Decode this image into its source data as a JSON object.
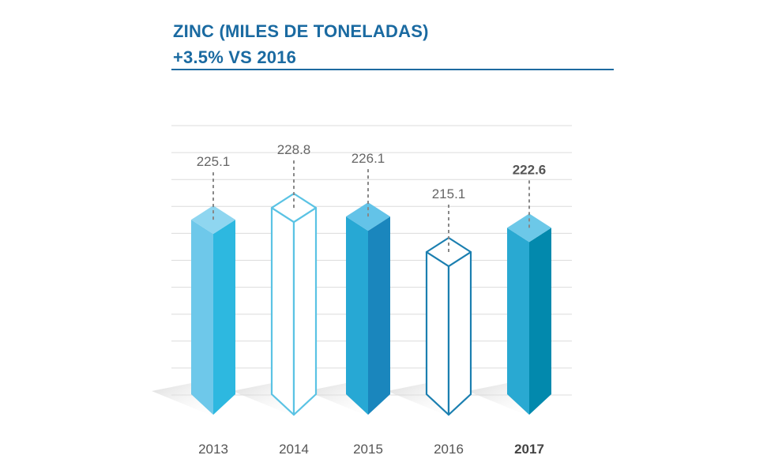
{
  "header": {
    "title_line1": "ZINC (MILES DE TONELADAS)",
    "title_line2": "+3.5% VS 2016"
  },
  "colors": {
    "title": "#1a6aa1",
    "grid": "#dcdcdc",
    "leader": "#888888"
  },
  "chart_data": {
    "type": "bar",
    "title": "ZINC (MILES DE TONELADAS)",
    "subtitle": "+3.5% VS 2016",
    "xlabel": "",
    "ylabel": "",
    "categories": [
      "2013",
      "2014",
      "2015",
      "2016",
      "2017"
    ],
    "values": [
      225.1,
      228.8,
      226.1,
      215.1,
      222.6
    ],
    "value_labels": [
      "225.1",
      "228.8",
      "226.1",
      "215.1",
      "222.6"
    ],
    "highlight": "2017",
    "ylim": [
      160,
      232
    ],
    "grid": true,
    "legend": "none",
    "bar_styles": [
      {
        "style": "solid",
        "front": "#6ec8ea",
        "side": "#2db8e0",
        "top": "#8fd6f0"
      },
      {
        "style": "outline",
        "stroke": "#5bc3e4"
      },
      {
        "style": "solid",
        "front": "#27a8d4",
        "side": "#1a86bd",
        "top": "#63c3e8"
      },
      {
        "style": "outline",
        "stroke": "#1b7fb0"
      },
      {
        "style": "solid",
        "front": "#29a9d2",
        "side": "#0289ad",
        "top": "#6cc8e8"
      }
    ]
  }
}
